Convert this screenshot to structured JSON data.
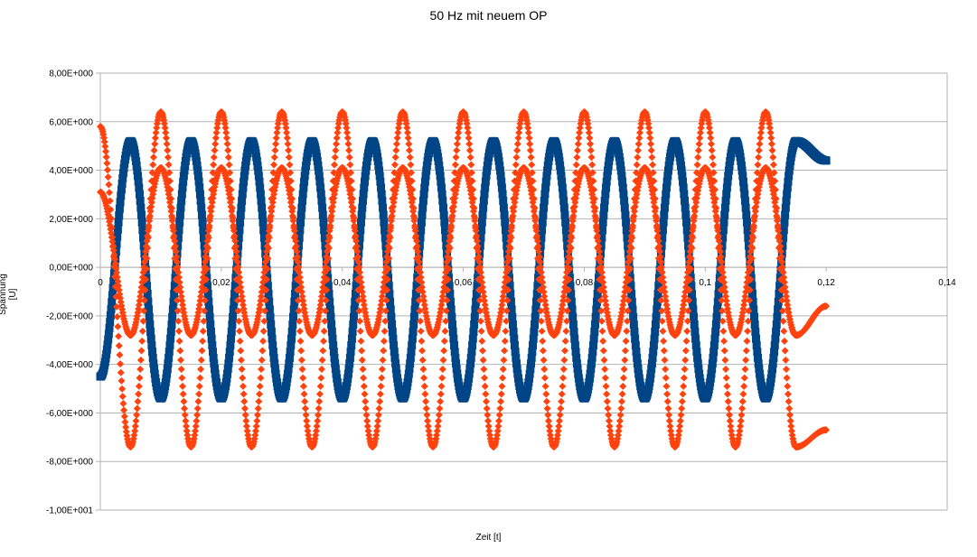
{
  "chart_data": {
    "type": "scatter",
    "title": "50 Hz mit neuem OP",
    "xlabel": "Zeit [t]",
    "ylabel": "Spannung [U]",
    "xlim": [
      0,
      0.14
    ],
    "ylim": [
      -10,
      8
    ],
    "x_ticks": [
      0,
      0.02,
      0.04,
      0.06,
      0.08,
      0.1,
      0.12,
      0.14
    ],
    "x_tick_labels": [
      "0",
      "0,02",
      "0,04",
      "0,06",
      "0,08",
      "0,1",
      "0,12",
      "0,14"
    ],
    "y_ticks": [
      8,
      6,
      4,
      2,
      0,
      -2,
      -4,
      -6,
      -8,
      -10
    ],
    "y_tick_labels": [
      "8,00E+000",
      "6,00E+000",
      "4,00E+000",
      "2,00E+000",
      "0,00E+000",
      "-2,00E+000",
      "-4,00E+000",
      "-6,00E+000",
      "-8,00E+000",
      "-1,00E+001"
    ],
    "grid": "horizontal",
    "legend": "none",
    "series": [
      {
        "color": "#004586",
        "marker": "square",
        "x": [
          0,
          0.005,
          0.01,
          0.015,
          0.02,
          0.025,
          0.03,
          0.035,
          0.04,
          0.045,
          0.05,
          0.055,
          0.06,
          0.065,
          0.07,
          0.075,
          0.08,
          0.085,
          0.09,
          0.095,
          0.1,
          0.105,
          0.11,
          0.115,
          0.12
        ],
        "y": [
          -4.5,
          5.2,
          -5.4,
          5.2,
          -5.4,
          5.2,
          -5.4,
          5.2,
          -5.4,
          5.2,
          -5.4,
          5.2,
          -5.4,
          5.2,
          -5.4,
          5.2,
          -5.4,
          5.2,
          -5.4,
          5.2,
          -5.4,
          5.2,
          -5.4,
          5.2,
          4.4
        ]
      },
      {
        "color": "#ff420e",
        "marker": "diamond",
        "x": [
          0,
          0.005,
          0.01,
          0.015,
          0.02,
          0.025,
          0.03,
          0.035,
          0.04,
          0.045,
          0.05,
          0.055,
          0.06,
          0.065,
          0.07,
          0.075,
          0.08,
          0.085,
          0.09,
          0.095,
          0.1,
          0.105,
          0.11,
          0.115,
          0.12
        ],
        "y": [
          5.8,
          -7.4,
          6.4,
          -7.4,
          6.4,
          -7.4,
          6.4,
          -7.4,
          6.4,
          -7.4,
          6.4,
          -7.4,
          6.4,
          -7.4,
          6.4,
          -7.4,
          6.4,
          -7.4,
          6.4,
          -7.4,
          6.4,
          -7.4,
          6.4,
          -7.4,
          -6.7
        ]
      },
      {
        "color": "#ff420e",
        "marker": "diamond",
        "x": [
          0,
          0.005,
          0.01,
          0.015,
          0.02,
          0.025,
          0.03,
          0.035,
          0.04,
          0.045,
          0.05,
          0.055,
          0.06,
          0.065,
          0.07,
          0.075,
          0.08,
          0.085,
          0.09,
          0.095,
          0.1,
          0.105,
          0.11,
          0.115,
          0.12
        ],
        "y": [
          3.1,
          -2.8,
          4.1,
          -2.8,
          4.1,
          -2.8,
          4.1,
          -2.8,
          4.1,
          -2.8,
          4.1,
          -2.8,
          4.1,
          -2.8,
          4.1,
          -2.8,
          4.1,
          -2.8,
          4.1,
          -2.8,
          4.1,
          -2.8,
          4.1,
          -2.8,
          -1.6
        ]
      }
    ]
  }
}
